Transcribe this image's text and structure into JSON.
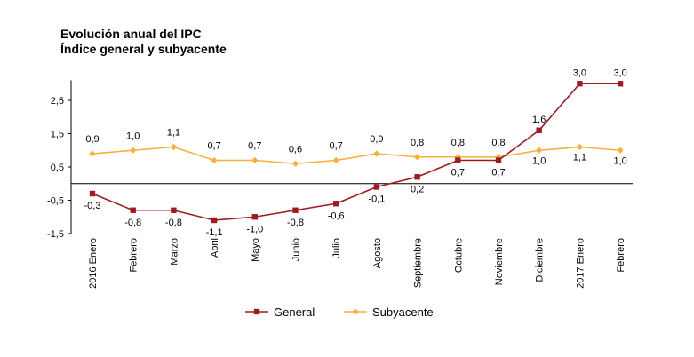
{
  "chart_data": {
    "type": "line",
    "title": "Evolución anual del IPC",
    "subtitle": "Índice general y subyacente",
    "categories": [
      "2016 Enero",
      "Febrero",
      "Marzo",
      "Abril",
      "Mayo",
      "Junio",
      "Julio",
      "Agosto",
      "Septiembre",
      "Octubre",
      "Noviembre",
      "Diciembre",
      "2017 Enero",
      "Febrero"
    ],
    "series": [
      {
        "name": "General",
        "color": "#9e1b22",
        "marker": "square",
        "values": [
          -0.3,
          -0.8,
          -0.8,
          -1.1,
          -1.0,
          -0.8,
          -0.6,
          -0.1,
          0.2,
          0.7,
          0.7,
          1.6,
          3.0,
          3.0
        ],
        "labels": [
          "-0,3",
          "-0,8",
          "-0,8",
          "-1,1",
          "-1,0",
          "-0,8",
          "-0,6",
          "-0,1",
          "0,2",
          "0,7",
          "0,7",
          "1,6",
          "3,0",
          "3,0"
        ]
      },
      {
        "name": "Subyacente",
        "color": "#f6b03b",
        "marker": "diamond",
        "values": [
          0.9,
          1.0,
          1.1,
          0.7,
          0.7,
          0.6,
          0.7,
          0.9,
          0.8,
          0.8,
          0.8,
          1.0,
          1.1,
          1.0
        ],
        "labels": [
          "0,9",
          "1,0",
          "1,1",
          "0,7",
          "0,7",
          "0,6",
          "0,7",
          "0,9",
          "0,8",
          "0,8",
          "0,8",
          "1,0",
          "1,1",
          "1,0"
        ]
      }
    ],
    "ylim": [
      -1.5,
      3.1
    ],
    "yticks": [
      2.5,
      1.5,
      0.5,
      -0.5,
      -1.5
    ],
    "ytick_labels": [
      "2,5",
      "1,5",
      "0,5",
      "-0,5",
      "-1,5"
    ],
    "xlabel": "",
    "ylabel": "",
    "grid": false,
    "legend_position": "bottom-center"
  }
}
